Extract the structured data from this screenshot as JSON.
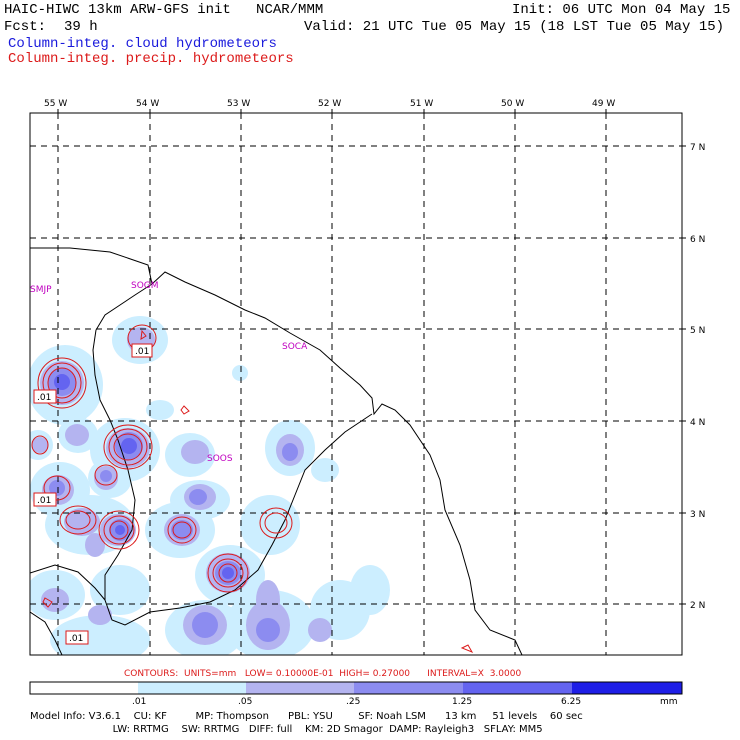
{
  "header": {
    "title_left": "HAIC-HIWC 13km ARW-GFS init   NCAR/MMM",
    "init": "Init: 06 UTC Mon 04 May 15",
    "fcst_label": "Fcst:",
    "fcst_value": "39 h",
    "valid": "Valid: 21 UTC Tue 05 May 15 (18 LST Tue 05 May 15)",
    "field_cloud": "Column-integ. cloud hydrometeors",
    "field_precip": "Column-integ. precip. hydrometeors"
  },
  "map": {
    "lon_labels": [
      "55 W",
      "54 W",
      "53 W",
      "52 W",
      "51 W",
      "50 W",
      "49 W"
    ],
    "lat_labels": [
      "7 N",
      "6 N",
      "5 N",
      "4 N",
      "3 N",
      "2 N"
    ],
    "stations": [
      "SMJP",
      "SOGM",
      "SOCA",
      "SOOS"
    ],
    "contour_labels": [
      ".01",
      ".01",
      ".01",
      ".01"
    ],
    "colors": {
      "cloud_line": "#1a1adc",
      "precip_line": "#dc1a1a",
      "station": "#c000c0",
      "coast": "#000000"
    }
  },
  "contours_info": {
    "text": "CONTOURS:  UNITS=mm   LOW= 0.10000E-01  HIGH= 0.27000      INTERVAL=X  3.0000"
  },
  "colorbar": {
    "unit": "mm",
    "ticks": [
      ".01",
      ".05",
      ".25",
      "1.25",
      "6.25"
    ],
    "colors": [
      "#ffffff",
      "#cceeff",
      "#b4b4f0",
      "#8c8cf0",
      "#6464f0",
      "#1e1ee6"
    ]
  },
  "model_info": {
    "line1": "Model Info: V3.6.1    CU: KF         MP: Thompson      PBL: YSU        SF: Noah LSM      13 km     51 levels    60 sec",
    "line2": "                          LW: RRTMG    SW: RRTMG   DIFF: full    KM: 2D Smagor  DAMP: Rayleigh3   SFLAY: MM5"
  }
}
